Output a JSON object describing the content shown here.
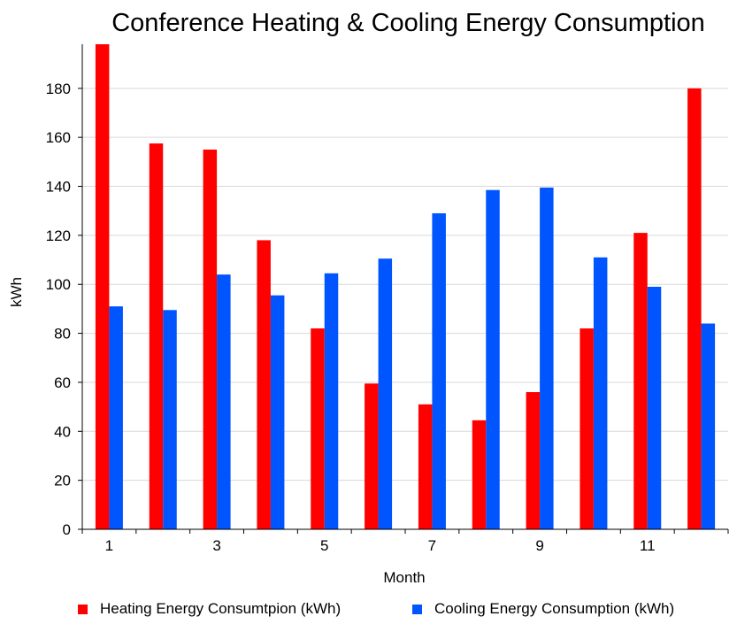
{
  "chart_data": {
    "type": "bar",
    "title": "Conference Heating & Cooling Energy Consumption",
    "xlabel": "Month",
    "ylabel": "kWh",
    "categories": [
      "1",
      "2",
      "3",
      "4",
      "5",
      "6",
      "7",
      "8",
      "9",
      "10",
      "11",
      "12"
    ],
    "x_tick_labels": [
      "1",
      "3",
      "5",
      "7",
      "9",
      "11"
    ],
    "y_ticks": [
      0,
      20,
      40,
      60,
      80,
      100,
      120,
      140,
      160,
      180
    ],
    "ylim": [
      0,
      198
    ],
    "grid": true,
    "legend_position": "bottom",
    "series": [
      {
        "name": "Heating Energy Consumtpion (kWh)",
        "color": "#ff0000",
        "values": [
          198,
          157.5,
          155,
          118,
          82,
          59.5,
          51,
          44.5,
          56,
          82,
          121,
          180
        ]
      },
      {
        "name": "Cooling Energy Consumption (kWh)",
        "color": "#0055ff",
        "values": [
          91,
          89.5,
          104,
          95.5,
          104.5,
          110.5,
          129,
          138.5,
          139.5,
          111,
          99,
          84
        ]
      }
    ]
  }
}
